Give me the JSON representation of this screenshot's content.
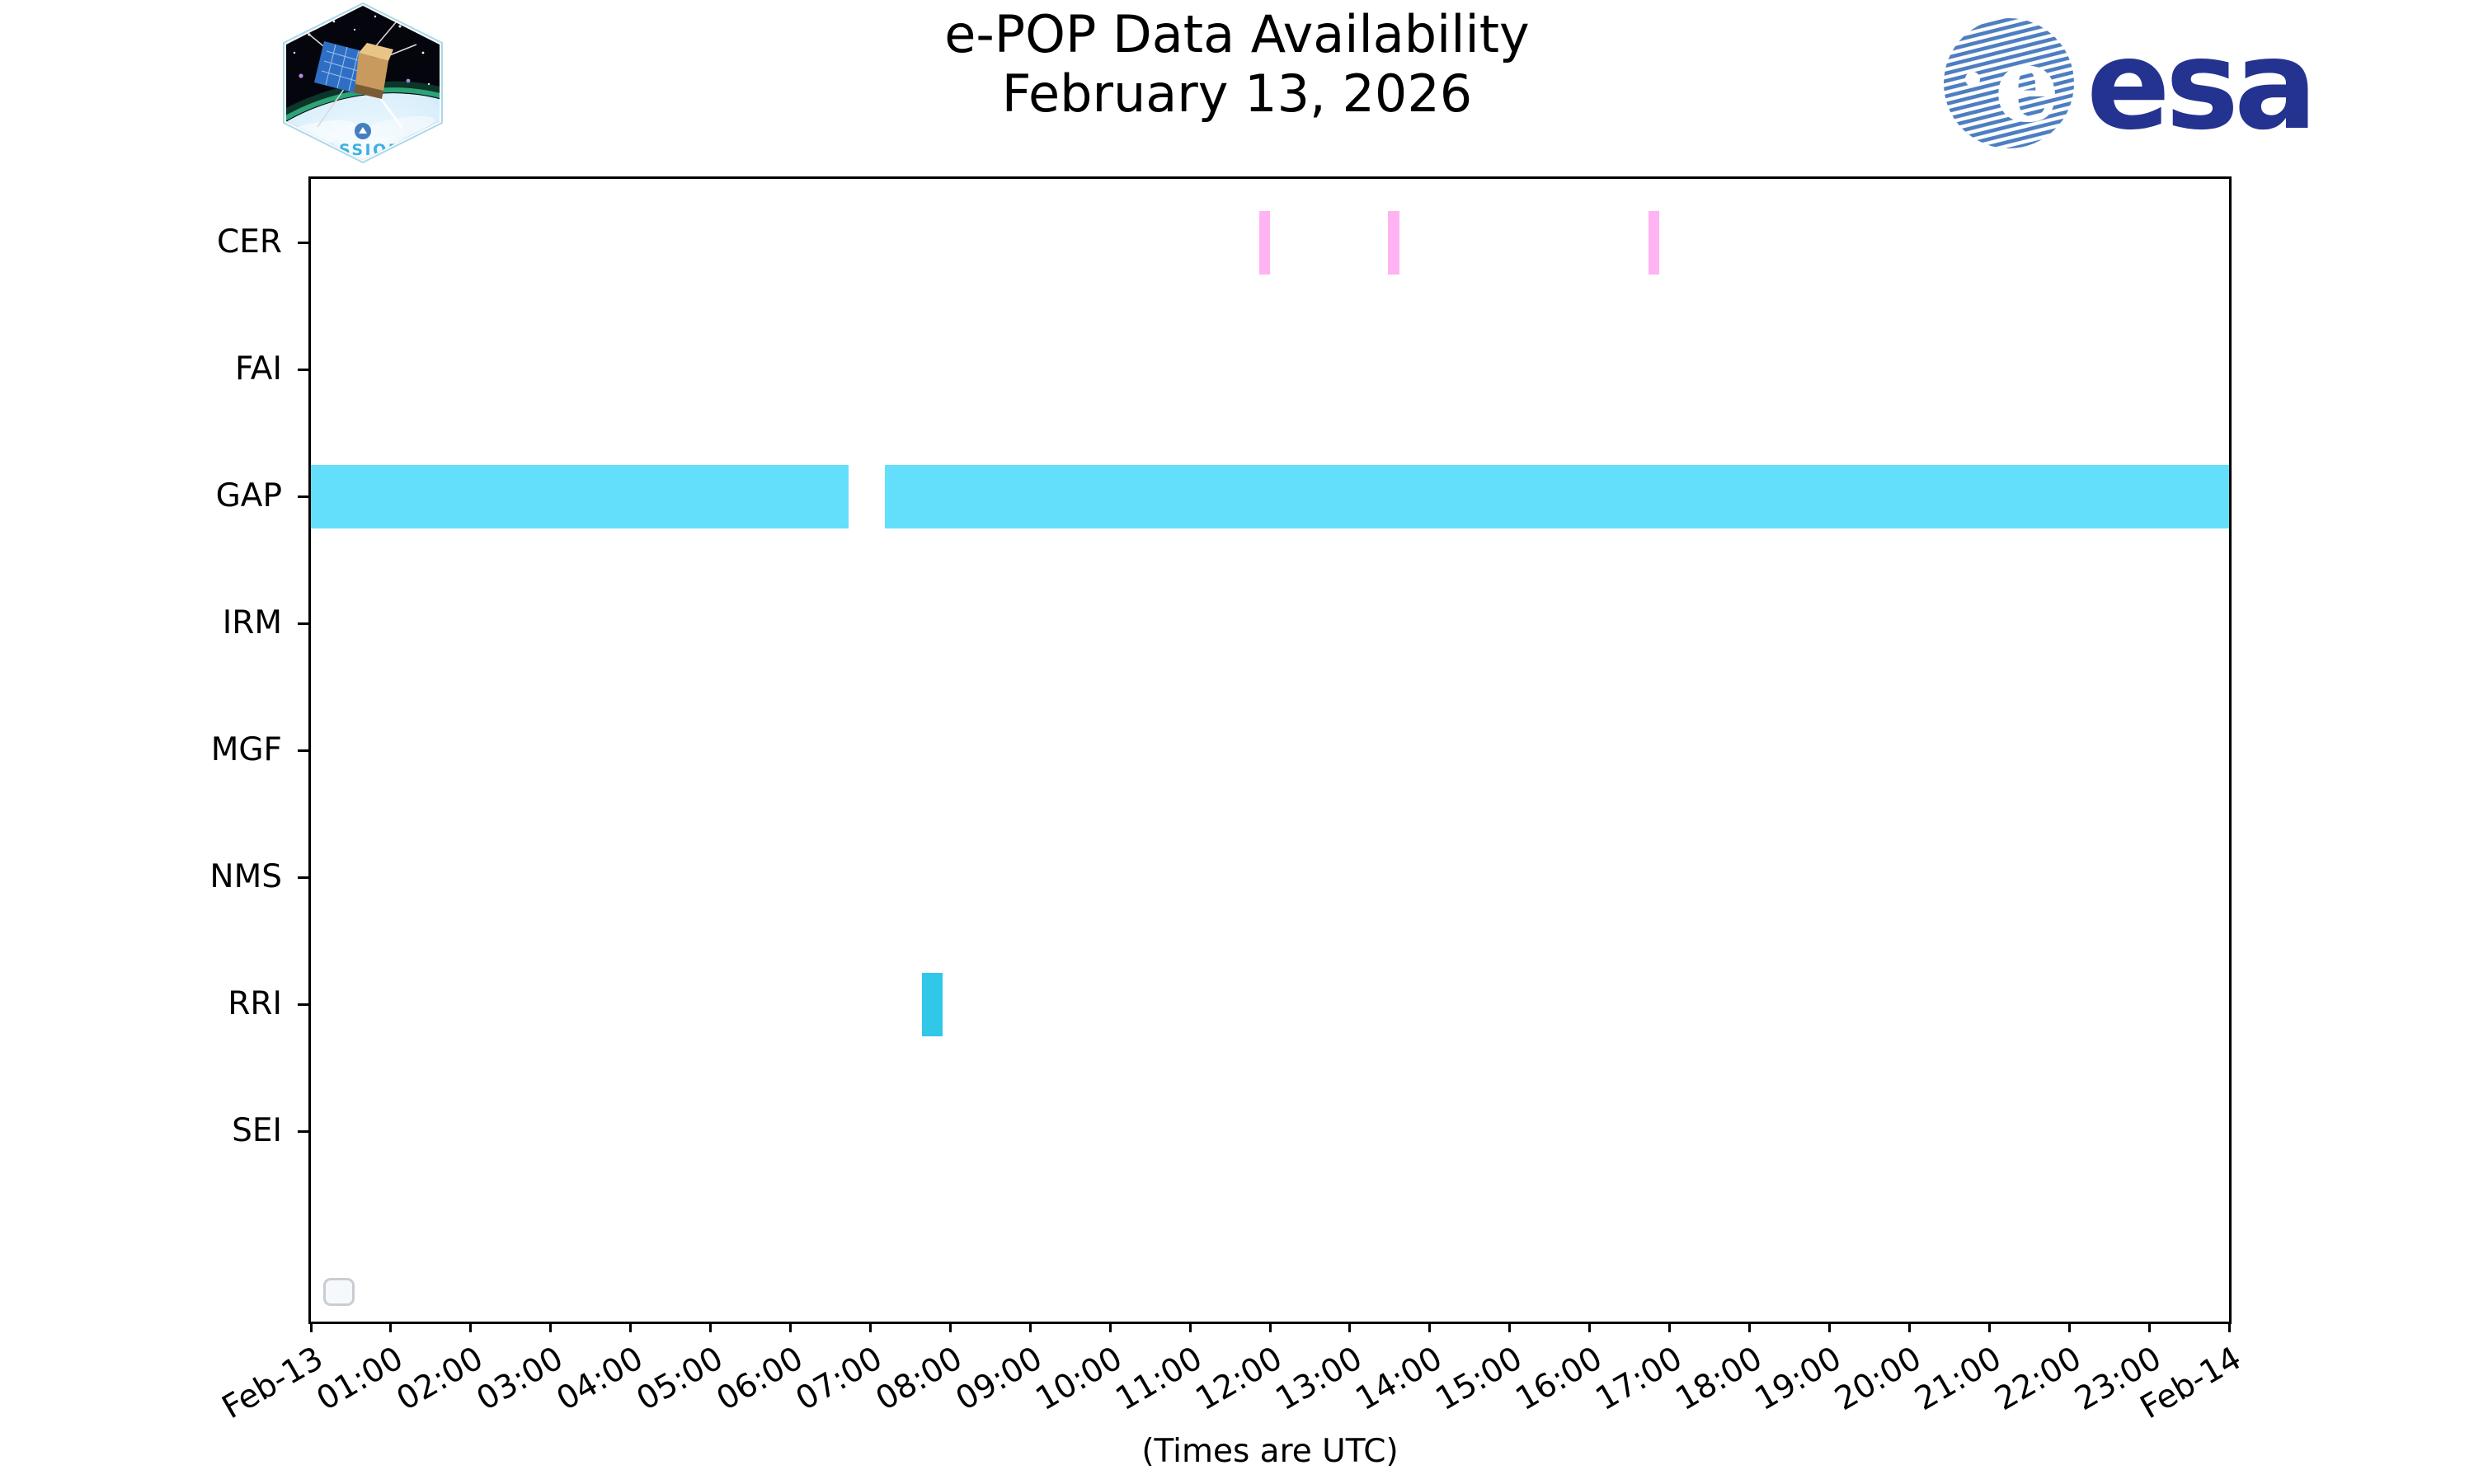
{
  "header": {
    "title_line1": "e-POP Data Availability",
    "title_line2": "February 13, 2026"
  },
  "logos": {
    "cassiope": {
      "label": "CASSIOPE"
    },
    "esa": {
      "wordmark": "esa",
      "globe_letter": "e"
    }
  },
  "chart_data": {
    "type": "bar",
    "subtype": "horizontal-availability-timeline",
    "title": "e-POP Data Availability — February 13, 2026",
    "xlabel": "(Times are UTC)",
    "x_range_hours": [
      0,
      24
    ],
    "x_tick_labels": [
      "Feb-13",
      "01:00",
      "02:00",
      "03:00",
      "04:00",
      "05:00",
      "06:00",
      "07:00",
      "08:00",
      "09:00",
      "10:00",
      "11:00",
      "12:00",
      "13:00",
      "14:00",
      "15:00",
      "16:00",
      "17:00",
      "18:00",
      "19:00",
      "20:00",
      "21:00",
      "22:00",
      "23:00",
      "Feb-14"
    ],
    "rows": [
      "CER",
      "FAI",
      "GAP",
      "IRM",
      "MGF",
      "NMS",
      "RRI",
      "SEI"
    ],
    "row_slots": 9,
    "bar_height_fraction": 0.5,
    "grid": false,
    "legend": {
      "visible": true,
      "entries": [],
      "position": "lower-left"
    },
    "bars": [
      {
        "row": "CER",
        "start_hour": 11.87,
        "end_hour": 12.0,
        "start": "11:52",
        "end": "12:00",
        "color": "#FFB3F2"
      },
      {
        "row": "CER",
        "start_hour": 13.48,
        "end_hour": 13.62,
        "start": "13:29",
        "end": "13:37",
        "color": "#FFB3F2"
      },
      {
        "row": "CER",
        "start_hour": 16.74,
        "end_hour": 16.87,
        "start": "16:45",
        "end": "16:52",
        "color": "#FFB3F2"
      },
      {
        "row": "GAP",
        "start_hour": 0.0,
        "end_hour": 6.73,
        "start": "00:00",
        "end": "06:44",
        "color": "#63DFFB"
      },
      {
        "row": "GAP",
        "start_hour": 7.18,
        "end_hour": 24.0,
        "start": "07:11",
        "end": "24:00",
        "color": "#63DFFB"
      },
      {
        "row": "RRI",
        "start_hour": 7.65,
        "end_hour": 7.9,
        "start": "07:39",
        "end": "07:54",
        "color": "#30C7E8"
      }
    ],
    "colors": {
      "axis": "#000000",
      "background": "#ffffff",
      "cer": "#FFB3F2",
      "gap": "#63DFFB",
      "rri": "#30C7E8"
    }
  }
}
